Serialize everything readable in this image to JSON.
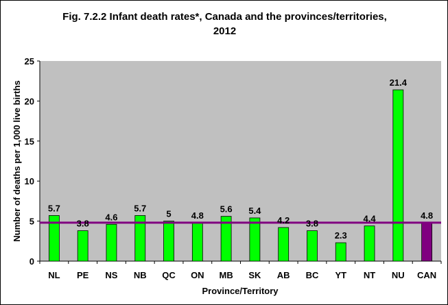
{
  "chart_data": {
    "type": "bar",
    "title": "Fig. 7.2.2 Infant death rates*, Canada and the provinces/territories, 2012",
    "title_lines": [
      "Fig. 7.2.2 Infant death rates*, Canada and the provinces/territories,",
      "2012"
    ],
    "xlabel": "Province/Territory",
    "ylabel": "Number of deaths per 1,000 live births",
    "categories": [
      "NL",
      "PE",
      "NS",
      "NB",
      "QC",
      "ON",
      "MB",
      "SK",
      "AB",
      "BC",
      "YT",
      "NT",
      "NU",
      "CAN"
    ],
    "values": [
      5.7,
      3.8,
      4.6,
      5.7,
      5,
      4.8,
      5.6,
      5.4,
      4.2,
      3.8,
      2.3,
      4.4,
      21.4,
      4.8
    ],
    "data_labels": [
      "5.7",
      "3.8",
      "4.6",
      "5.7",
      "5",
      "4.8",
      "5.6",
      "5.4",
      "4.2",
      "3.8",
      "2.3",
      "4.4",
      "21.4",
      "4.8"
    ],
    "ylim": [
      0,
      25
    ],
    "yticks": [
      0,
      5,
      10,
      15,
      20,
      25
    ],
    "reference_line": 4.8,
    "grid": false,
    "legend": "none",
    "colors": {
      "bar": "#00ff00",
      "highlight_bar": "#800080",
      "reference_line": "#800080",
      "plot_background": "#c0c0c0"
    }
  }
}
